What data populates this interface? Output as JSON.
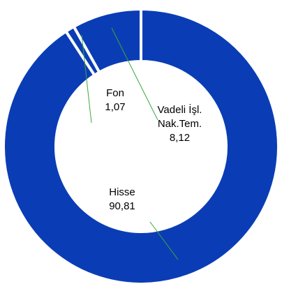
{
  "chart_data": {
    "type": "donut",
    "categories": [
      "Hisse",
      "Fon",
      "Vadeli İşl. Nak.Tem."
    ],
    "values": [
      90.81,
      1.07,
      8.12
    ],
    "value_labels": [
      "90,81",
      "1,07",
      "8,12"
    ],
    "color": "#0a3db5"
  }
}
